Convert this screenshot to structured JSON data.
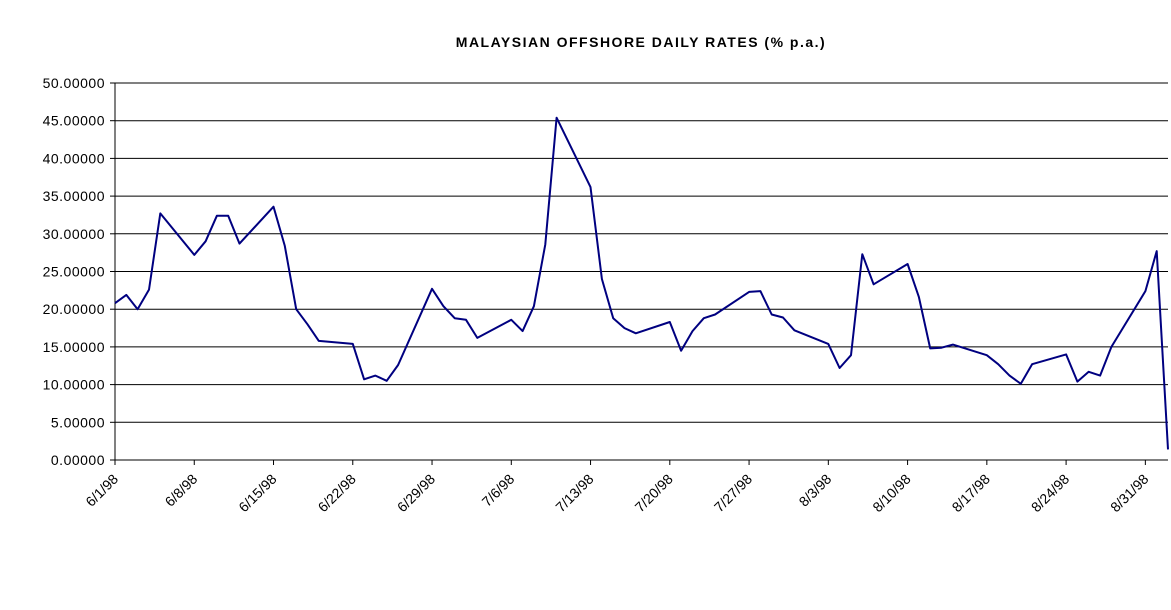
{
  "chart_data": {
    "type": "line",
    "title": "MALAYSIAN OFFSHORE DAILY RATES (% p.a.)",
    "x": [
      "6/1/98",
      "6/2/98",
      "6/3/98",
      "6/4/98",
      "6/5/98",
      "6/8/98",
      "6/9/98",
      "6/10/98",
      "6/11/98",
      "6/12/98",
      "6/15/98",
      "6/16/98",
      "6/17/98",
      "6/18/98",
      "6/19/98",
      "6/22/98",
      "6/23/98",
      "6/24/98",
      "6/25/98",
      "6/26/98",
      "6/29/98",
      "6/30/98",
      "7/1/98",
      "7/2/98",
      "7/3/98",
      "7/6/98",
      "7/7/98",
      "7/8/98",
      "7/9/98",
      "7/10/98",
      "7/13/98",
      "7/14/98",
      "7/15/98",
      "7/16/98",
      "7/17/98",
      "7/20/98",
      "7/21/98",
      "7/22/98",
      "7/23/98",
      "7/24/98",
      "7/27/98",
      "7/28/98",
      "7/29/98",
      "7/30/98",
      "7/31/98",
      "8/3/98",
      "8/4/98",
      "8/5/98",
      "8/6/98",
      "8/7/98",
      "8/10/98",
      "8/11/98",
      "8/12/98",
      "8/13/98",
      "8/14/98",
      "8/17/98",
      "8/18/98",
      "8/19/98",
      "8/20/98",
      "8/21/98",
      "8/24/98",
      "8/25/98",
      "8/26/98",
      "8/27/98",
      "8/28/98",
      "8/31/98",
      "9/1/98",
      "9/2/98"
    ],
    "series": [
      {
        "color": "#000080",
        "values": [
          20.8,
          21.9,
          20.0,
          22.6,
          32.7,
          27.2,
          29.0,
          32.4,
          32.4,
          28.7,
          33.6,
          28.4,
          20.0,
          18.0,
          15.8,
          15.4,
          10.7,
          11.2,
          10.5,
          12.6,
          22.7,
          20.4,
          18.8,
          18.6,
          16.2,
          18.6,
          17.1,
          20.4,
          28.6,
          45.4,
          36.2,
          24.0,
          18.8,
          17.5,
          16.8,
          18.3,
          14.5,
          17.1,
          18.8,
          19.3,
          22.3,
          22.4,
          19.3,
          18.9,
          17.2,
          15.4,
          12.2,
          13.9,
          27.3,
          23.3,
          26.0,
          21.6,
          14.8,
          14.9,
          15.3,
          13.9,
          12.7,
          11.2,
          10.1,
          12.7,
          14.0,
          10.4,
          11.7,
          11.2,
          15.0,
          22.4,
          27.7,
          1.4
        ]
      }
    ],
    "xlim": [
      "6/1/98",
      "9/2/98"
    ],
    "xticks": [
      "6/1/98",
      "6/8/98",
      "6/15/98",
      "6/22/98",
      "6/29/98",
      "7/6/98",
      "7/13/98",
      "7/20/98",
      "7/27/98",
      "8/3/98",
      "8/10/98",
      "8/17/98",
      "8/24/98",
      "8/31/98"
    ],
    "ylim": [
      0,
      50
    ],
    "yticks": [
      {
        "value": 0,
        "label": "0.00000"
      },
      {
        "value": 5,
        "label": "5.00000"
      },
      {
        "value": 10,
        "label": "10.00000"
      },
      {
        "value": 15,
        "label": "15.00000"
      },
      {
        "value": 20,
        "label": "20.00000"
      },
      {
        "value": 25,
        "label": "25.00000"
      },
      {
        "value": 30,
        "label": "30.00000"
      },
      {
        "value": 35,
        "label": "35.00000"
      },
      {
        "value": 40,
        "label": "40.00000"
      },
      {
        "value": 45,
        "label": "45.00000"
      },
      {
        "value": 50,
        "label": "50.00000"
      }
    ],
    "grid": true
  }
}
